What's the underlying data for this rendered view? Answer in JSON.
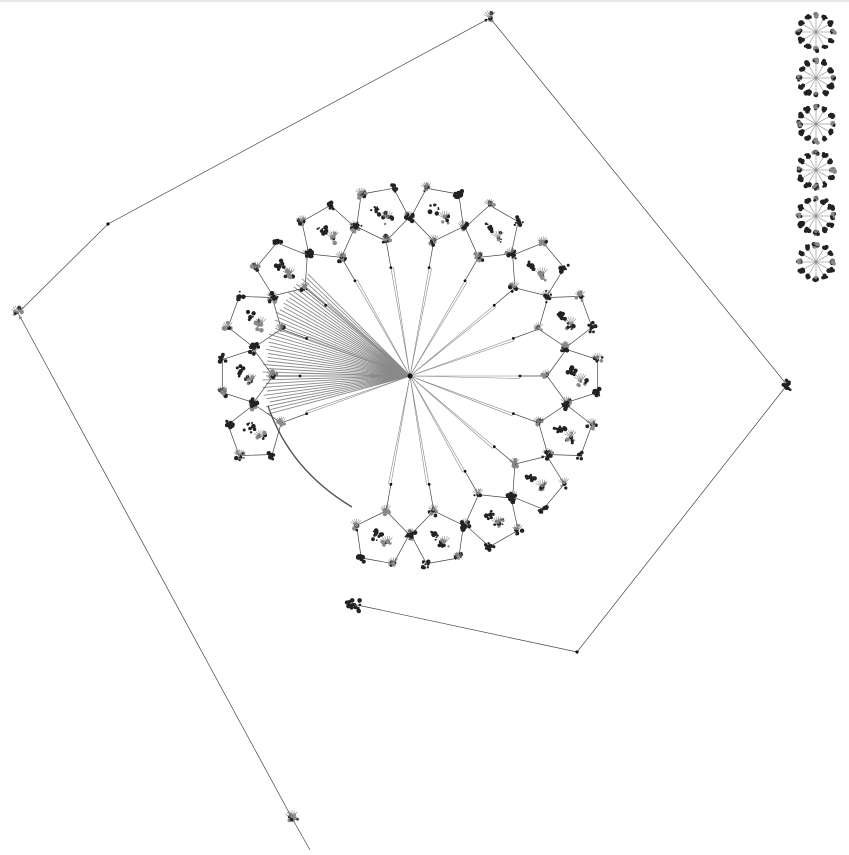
{
  "diagram": {
    "type": "graph-layout",
    "style": "radial tree with nested polygon sub-clusters",
    "colors": {
      "background": "#ffffff",
      "edge": "#444444",
      "fan": "#8a8a8a",
      "node": "#111111"
    },
    "central_hub": {
      "fan_bundle": true
    },
    "ring_clusters_count": 16,
    "side_column_clusters_count": 6,
    "outer_loop_nodes_count": 8
  }
}
